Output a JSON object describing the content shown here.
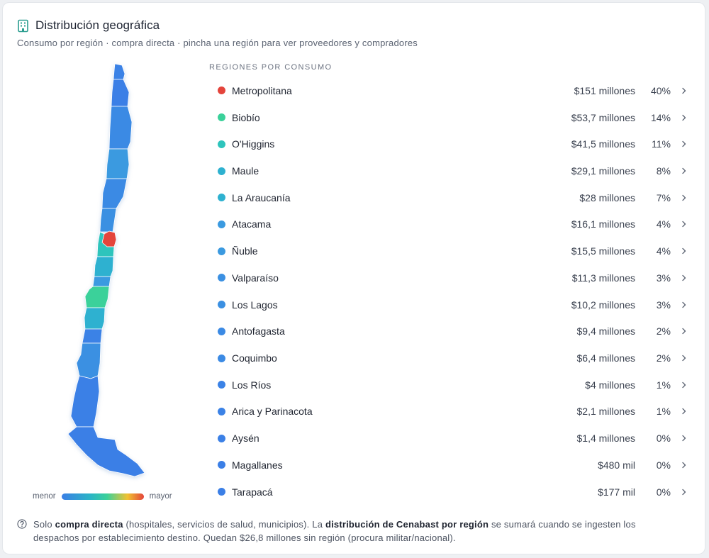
{
  "header": {
    "title": "Distribución geográfica",
    "subtitle": "Consumo por región · compra directa · pincha una región para ver proveedores y compradores",
    "icon": "building-icon"
  },
  "legend": {
    "min_label": "menor",
    "max_label": "mayor"
  },
  "list": {
    "header": "REGIONES POR CONSUMO",
    "items": [
      {
        "name": "Metropolitana",
        "value": "$151 millones",
        "pct": "40%",
        "color": "#e4443b"
      },
      {
        "name": "Biobío",
        "value": "$53,7 millones",
        "pct": "14%",
        "color": "#3bd19a"
      },
      {
        "name": "O'Higgins",
        "value": "$41,5 millones",
        "pct": "11%",
        "color": "#2ec4bc"
      },
      {
        "name": "Maule",
        "value": "$29,1 millones",
        "pct": "8%",
        "color": "#2eb1d0"
      },
      {
        "name": "La Araucanía",
        "value": "$28 millones",
        "pct": "7%",
        "color": "#2eb1d0"
      },
      {
        "name": "Atacama",
        "value": "$16,1 millones",
        "pct": "4%",
        "color": "#3b9ae0"
      },
      {
        "name": "Ñuble",
        "value": "$15,5 millones",
        "pct": "4%",
        "color": "#3b9ae0"
      },
      {
        "name": "Valparaíso",
        "value": "$11,3 millones",
        "pct": "3%",
        "color": "#3b90e2"
      },
      {
        "name": "Los Lagos",
        "value": "$10,2 millones",
        "pct": "3%",
        "color": "#3b90e2"
      },
      {
        "name": "Antofagasta",
        "value": "$9,4 millones",
        "pct": "2%",
        "color": "#3b8ae4"
      },
      {
        "name": "Coquimbo",
        "value": "$6,4 millones",
        "pct": "2%",
        "color": "#3b8ae4"
      },
      {
        "name": "Los Ríos",
        "value": "$4 millones",
        "pct": "1%",
        "color": "#3b82e6"
      },
      {
        "name": "Arica y Parinacota",
        "value": "$2,1 millones",
        "pct": "1%",
        "color": "#3b82e6"
      },
      {
        "name": "Aysén",
        "value": "$1,4 millones",
        "pct": "0%",
        "color": "#3b80e6"
      },
      {
        "name": "Magallanes",
        "value": "$480 mil",
        "pct": "0%",
        "color": "#3b7fe6"
      },
      {
        "name": "Tarapacá",
        "value": "$177 mil",
        "pct": "0%",
        "color": "#3b7fe6"
      }
    ]
  },
  "footer": {
    "part1": "Solo ",
    "bold1": "compra directa",
    "part2": " (hospitales, servicios de salud, municipios). La ",
    "bold2": "distribución de Cenabast por región",
    "part3": " se sumará cuando se ingesten los despachos por establecimiento destino. Quedan $26,8 millones sin región (procura militar/nacional)."
  }
}
